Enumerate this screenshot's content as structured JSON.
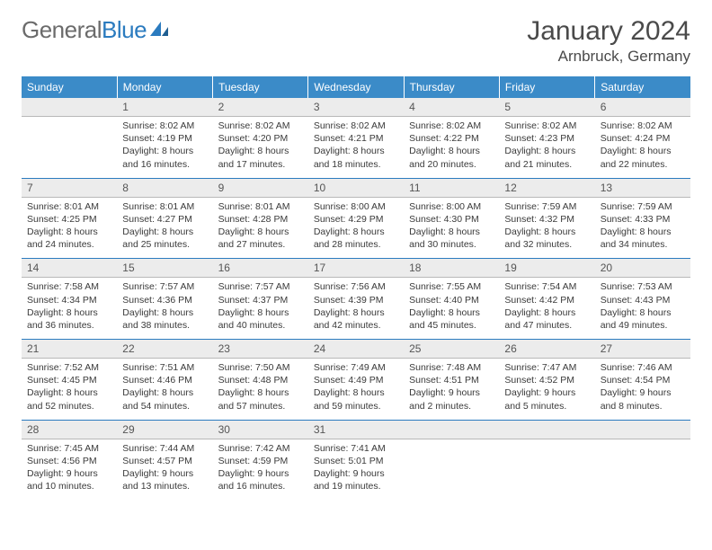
{
  "brand": {
    "part1": "General",
    "part2": "Blue"
  },
  "title": "January 2024",
  "location": "Arnbruck, Germany",
  "colors": {
    "header_bg": "#3b8bc8",
    "header_text": "#ffffff",
    "daynum_bg": "#ececec",
    "daynum_border": "#b8b8b8",
    "row_divider": "#2b7bbf",
    "body_text": "#3a3a3a",
    "title_text": "#4a4a4a"
  },
  "day_names": [
    "Sunday",
    "Monday",
    "Tuesday",
    "Wednesday",
    "Thursday",
    "Friday",
    "Saturday"
  ],
  "weeks": [
    {
      "nums": [
        "",
        "1",
        "2",
        "3",
        "4",
        "5",
        "6"
      ],
      "cells": [
        "",
        "Sunrise: 8:02 AM\nSunset: 4:19 PM\nDaylight: 8 hours and 16 minutes.",
        "Sunrise: 8:02 AM\nSunset: 4:20 PM\nDaylight: 8 hours and 17 minutes.",
        "Sunrise: 8:02 AM\nSunset: 4:21 PM\nDaylight: 8 hours and 18 minutes.",
        "Sunrise: 8:02 AM\nSunset: 4:22 PM\nDaylight: 8 hours and 20 minutes.",
        "Sunrise: 8:02 AM\nSunset: 4:23 PM\nDaylight: 8 hours and 21 minutes.",
        "Sunrise: 8:02 AM\nSunset: 4:24 PM\nDaylight: 8 hours and 22 minutes."
      ]
    },
    {
      "nums": [
        "7",
        "8",
        "9",
        "10",
        "11",
        "12",
        "13"
      ],
      "cells": [
        "Sunrise: 8:01 AM\nSunset: 4:25 PM\nDaylight: 8 hours and 24 minutes.",
        "Sunrise: 8:01 AM\nSunset: 4:27 PM\nDaylight: 8 hours and 25 minutes.",
        "Sunrise: 8:01 AM\nSunset: 4:28 PM\nDaylight: 8 hours and 27 minutes.",
        "Sunrise: 8:00 AM\nSunset: 4:29 PM\nDaylight: 8 hours and 28 minutes.",
        "Sunrise: 8:00 AM\nSunset: 4:30 PM\nDaylight: 8 hours and 30 minutes.",
        "Sunrise: 7:59 AM\nSunset: 4:32 PM\nDaylight: 8 hours and 32 minutes.",
        "Sunrise: 7:59 AM\nSunset: 4:33 PM\nDaylight: 8 hours and 34 minutes."
      ]
    },
    {
      "nums": [
        "14",
        "15",
        "16",
        "17",
        "18",
        "19",
        "20"
      ],
      "cells": [
        "Sunrise: 7:58 AM\nSunset: 4:34 PM\nDaylight: 8 hours and 36 minutes.",
        "Sunrise: 7:57 AM\nSunset: 4:36 PM\nDaylight: 8 hours and 38 minutes.",
        "Sunrise: 7:57 AM\nSunset: 4:37 PM\nDaylight: 8 hours and 40 minutes.",
        "Sunrise: 7:56 AM\nSunset: 4:39 PM\nDaylight: 8 hours and 42 minutes.",
        "Sunrise: 7:55 AM\nSunset: 4:40 PM\nDaylight: 8 hours and 45 minutes.",
        "Sunrise: 7:54 AM\nSunset: 4:42 PM\nDaylight: 8 hours and 47 minutes.",
        "Sunrise: 7:53 AM\nSunset: 4:43 PM\nDaylight: 8 hours and 49 minutes."
      ]
    },
    {
      "nums": [
        "21",
        "22",
        "23",
        "24",
        "25",
        "26",
        "27"
      ],
      "cells": [
        "Sunrise: 7:52 AM\nSunset: 4:45 PM\nDaylight: 8 hours and 52 minutes.",
        "Sunrise: 7:51 AM\nSunset: 4:46 PM\nDaylight: 8 hours and 54 minutes.",
        "Sunrise: 7:50 AM\nSunset: 4:48 PM\nDaylight: 8 hours and 57 minutes.",
        "Sunrise: 7:49 AM\nSunset: 4:49 PM\nDaylight: 8 hours and 59 minutes.",
        "Sunrise: 7:48 AM\nSunset: 4:51 PM\nDaylight: 9 hours and 2 minutes.",
        "Sunrise: 7:47 AM\nSunset: 4:52 PM\nDaylight: 9 hours and 5 minutes.",
        "Sunrise: 7:46 AM\nSunset: 4:54 PM\nDaylight: 9 hours and 8 minutes."
      ]
    },
    {
      "nums": [
        "28",
        "29",
        "30",
        "31",
        "",
        "",
        ""
      ],
      "cells": [
        "Sunrise: 7:45 AM\nSunset: 4:56 PM\nDaylight: 9 hours and 10 minutes.",
        "Sunrise: 7:44 AM\nSunset: 4:57 PM\nDaylight: 9 hours and 13 minutes.",
        "Sunrise: 7:42 AM\nSunset: 4:59 PM\nDaylight: 9 hours and 16 minutes.",
        "Sunrise: 7:41 AM\nSunset: 5:01 PM\nDaylight: 9 hours and 19 minutes.",
        "",
        "",
        ""
      ]
    }
  ]
}
